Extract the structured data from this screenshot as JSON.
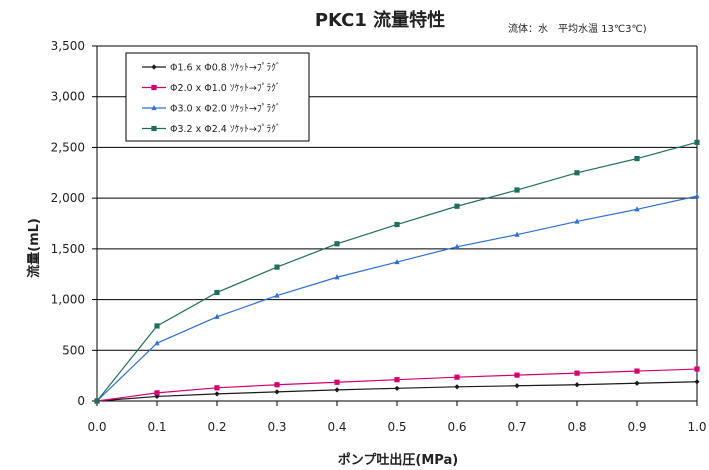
{
  "chart_data": {
    "type": "line",
    "title": "PKC1 流量特性",
    "subtitle": "流体：水　平均水温 13℃3℃)",
    "xlabel": "ポンプ吐出圧(MPa)",
    "ylabel": "流量(mL)",
    "xlim": [
      0,
      1.0
    ],
    "ylim": [
      0,
      3500
    ],
    "x": [
      0.0,
      0.1,
      0.2,
      0.3,
      0.4,
      0.5,
      0.6,
      0.7,
      0.8,
      0.9,
      1.0
    ],
    "x_ticks": [
      "0.0",
      "0.1",
      "0.2",
      "0.3",
      "0.4",
      "0.5",
      "0.6",
      "0.7",
      "0.8",
      "0.9",
      "1.0"
    ],
    "y_ticks": [
      "0",
      "500",
      "1,000",
      "1,500",
      "2,000",
      "2,500",
      "3,000",
      "3,500"
    ],
    "grid": "horizontal",
    "legend_position": "top-left",
    "series": [
      {
        "name": "Φ1.6 x Φ0.8 ｿｹｯﾄ→ﾌﾟﾗｸﾞ",
        "color": "#1a1a1a",
        "marker": "diamond",
        "values": [
          0,
          45,
          70,
          90,
          110,
          125,
          140,
          150,
          160,
          175,
          190
        ]
      },
      {
        "name": "Φ2.0 x Φ1.0 ｿｹｯﾄ→ﾌﾟﾗｸﾞ",
        "color": "#d6006f",
        "marker": "square",
        "values": [
          0,
          80,
          130,
          160,
          185,
          210,
          235,
          255,
          275,
          295,
          315
        ]
      },
      {
        "name": "Φ3.0 x Φ2.0 ｿｹｯﾄ→ﾌﾟﾗｸﾞ",
        "color": "#2f6fd6",
        "marker": "triangle",
        "values": [
          0,
          570,
          830,
          1040,
          1220,
          1370,
          1520,
          1640,
          1770,
          1890,
          2020
        ]
      },
      {
        "name": "Φ3.2 x Φ2.4 ｿｹｯﾄ→ﾌﾟﾗｸﾞ",
        "color": "#1f6f5c",
        "marker": "square",
        "values": [
          0,
          740,
          1070,
          1320,
          1550,
          1740,
          1920,
          2080,
          2250,
          2390,
          2550
        ]
      }
    ]
  }
}
